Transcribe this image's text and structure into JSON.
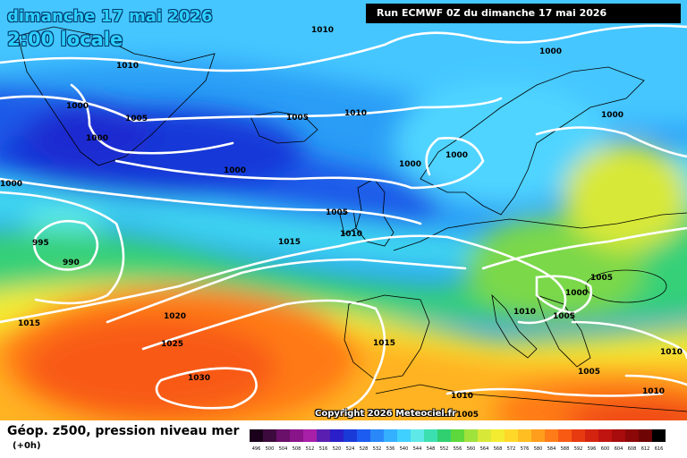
{
  "header": {
    "date_label": "dimanche 17 mai 2026",
    "time_label": "2:00 locale",
    "run_label": "Run ECMWF 0Z du dimanche 17 mai 2026"
  },
  "footer": {
    "product_title": "Géop. z500, pression niveau mer",
    "lead_time": "(+0h)",
    "copyright": "Copyright 2026 Meteociel.fr"
  },
  "legend": {
    "labels": [
      "496",
      "500",
      "504",
      "508",
      "512",
      "516",
      "520",
      "524",
      "528",
      "532",
      "536",
      "540",
      "544",
      "548",
      "552",
      "556",
      "560",
      "564",
      "568",
      "572",
      "576",
      "580",
      "584",
      "588",
      "592",
      "596",
      "600",
      "604",
      "608",
      "612",
      "616"
    ],
    "colors": [
      "#1a001a",
      "#3d0a3d",
      "#6a0f6a",
      "#8a148a",
      "#a81fa8",
      "#5a1fb0",
      "#2a1fc8",
      "#1a3ad8",
      "#1c5cf0",
      "#2a88f8",
      "#34b0ff",
      "#40d0ff",
      "#5ee8e8",
      "#3ce0b0",
      "#30d070",
      "#5cd83c",
      "#a0e23c",
      "#d8e838",
      "#f4ec30",
      "#ffd82a",
      "#ffbe22",
      "#ff9e1c",
      "#ff7c18",
      "#f85a14",
      "#e83a10",
      "#d42410",
      "#c01410",
      "#a80c0c",
      "#8c0808",
      "#6e0404",
      "#000000"
    ]
  },
  "isobar_labels": [
    {
      "text": "1010"
    },
    {
      "text": "1010"
    },
    {
      "text": "1005"
    },
    {
      "text": "1000"
    },
    {
      "text": "1000"
    },
    {
      "text": "1000"
    },
    {
      "text": "1005"
    },
    {
      "text": "1010"
    },
    {
      "text": "1000"
    },
    {
      "text": "1000"
    },
    {
      "text": "1000"
    },
    {
      "text": "1000"
    },
    {
      "text": "1000"
    },
    {
      "text": "995"
    },
    {
      "text": "990"
    },
    {
      "text": "1005"
    },
    {
      "text": "1010"
    },
    {
      "text": "1015"
    },
    {
      "text": "1015"
    },
    {
      "text": "1020"
    },
    {
      "text": "1025"
    },
    {
      "text": "1030"
    },
    {
      "text": "1015"
    },
    {
      "text": "1010"
    },
    {
      "text": "1010"
    },
    {
      "text": "1005"
    },
    {
      "text": "1000"
    },
    {
      "text": "1005"
    },
    {
      "text": "1005"
    },
    {
      "text": "1005"
    },
    {
      "text": "1010"
    },
    {
      "text": "1010"
    }
  ]
}
